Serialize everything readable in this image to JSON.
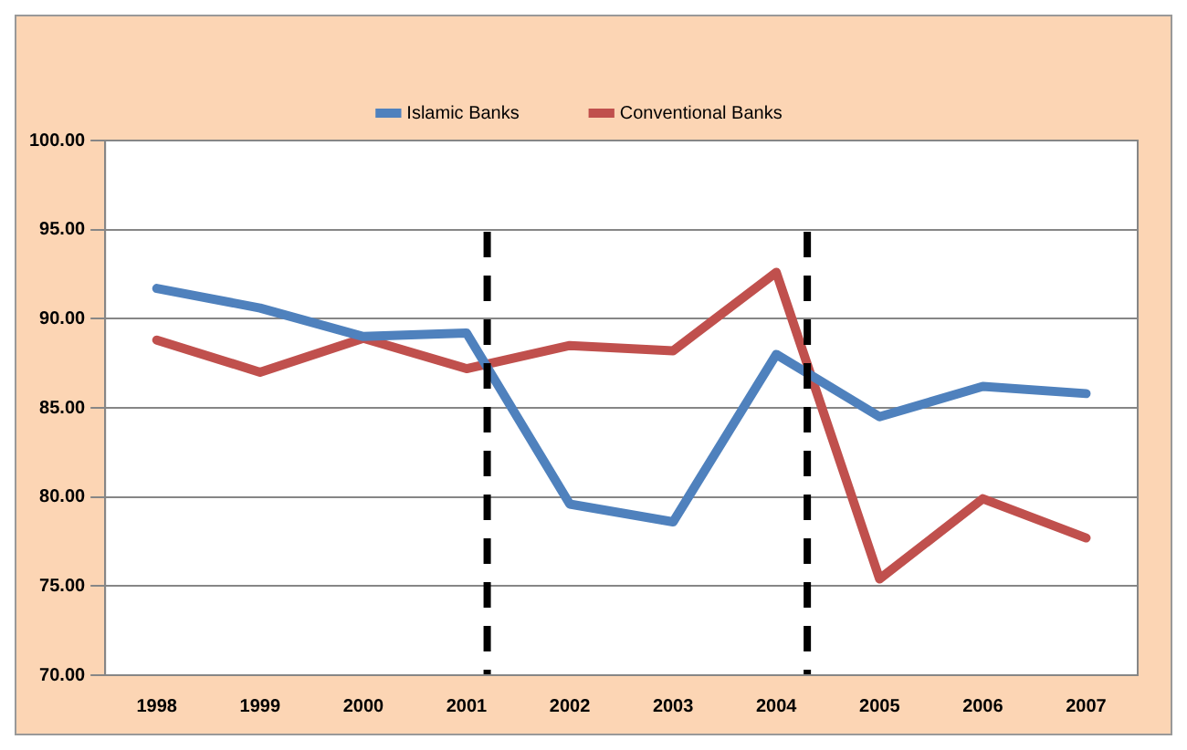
{
  "chart_data": {
    "type": "line",
    "x": [
      1998,
      1999,
      2000,
      2001,
      2002,
      2003,
      2004,
      2005,
      2006,
      2007
    ],
    "series": [
      {
        "name": "Islamic Banks",
        "color": "#4f81bd",
        "values": [
          91.7,
          90.6,
          89.0,
          89.2,
          79.6,
          78.6,
          88.0,
          84.5,
          86.2,
          85.8
        ]
      },
      {
        "name": "Conventional Banks",
        "color": "#c0504d",
        "values": [
          88.8,
          87.0,
          88.9,
          87.2,
          88.5,
          88.2,
          92.6,
          75.4,
          79.9,
          77.7
        ]
      }
    ],
    "xlim": [
      1997.5,
      2007.5
    ],
    "xticks": [
      1998,
      1999,
      2000,
      2001,
      2002,
      2003,
      2004,
      2005,
      2006,
      2007
    ],
    "ylim": [
      70,
      100
    ],
    "yticks": [
      {
        "value": 70,
        "label": "70.00"
      },
      {
        "value": 75,
        "label": "75.00"
      },
      {
        "value": 80,
        "label": "80.00"
      },
      {
        "value": 85,
        "label": "85.00"
      },
      {
        "value": 90,
        "label": "90.00"
      },
      {
        "value": 95,
        "label": "95.00"
      },
      {
        "value": 100,
        "label": "100.00"
      }
    ],
    "ref_lines": [
      {
        "axis": "x",
        "value": 2001.2,
        "color": "#000000",
        "line_style": "dashed"
      },
      {
        "axis": "x",
        "value": 2004.3,
        "color": "#000000",
        "line_style": "dashed"
      }
    ],
    "grid": "y",
    "legend": "top"
  }
}
